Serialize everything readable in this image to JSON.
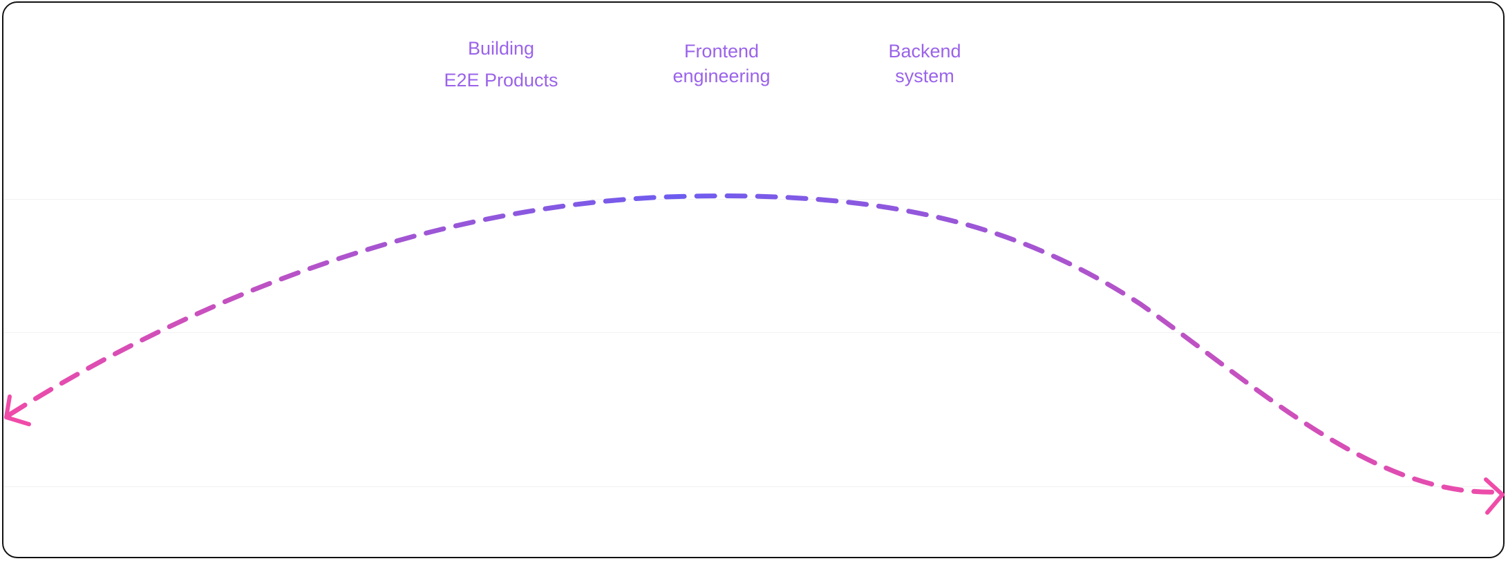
{
  "labels": [
    {
      "line1": "Building",
      "line2": "E2E Products"
    },
    {
      "line1": "Frontend",
      "line2": "engineering"
    },
    {
      "line1": "Backend",
      "line2": "system"
    }
  ],
  "colors": {
    "gradient_start": "#f04ba8",
    "gradient_mid": "#6d5cf0",
    "gradient_end": "#f04ba8",
    "label": "#9a63ea",
    "border": "#111111"
  }
}
